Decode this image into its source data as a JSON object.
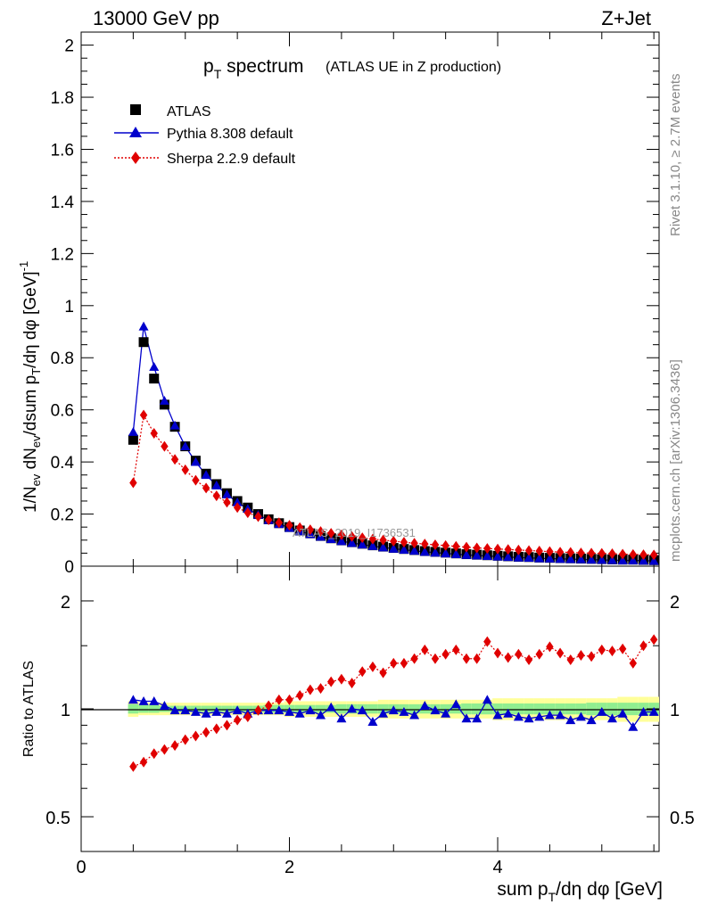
{
  "header": {
    "left": "13000 GeV pp",
    "right": "Z+Jet"
  },
  "plot_title": {
    "main": "p",
    "main_sub": "T",
    "main_rest": " spectrum",
    "qualifier": "(ATLAS UE in Z production)"
  },
  "side_labels": {
    "rivet": "Rivet 3.1.10, ≥ 2.7M events",
    "mcplots": "mcplots.cern.ch [arXiv:1306.3436]"
  },
  "watermark": "ATLAS_2019_I1736531",
  "y_axis_label": "1/N_ev dN_ev/dsum p_T/dη dφ [GeV]^-1",
  "x_axis_label": "sum p_T/dη dφ [GeV]",
  "ratio_axis_label": "Ratio to ATLAS",
  "colors": {
    "atlas": "#000000",
    "pythia": "#0000cc",
    "sherpa": "#e00000",
    "band_inner": "#90ee90",
    "band_outer": "#ffff99"
  },
  "legend": [
    {
      "label": "ATLAS",
      "marker": "square",
      "color": "#000000"
    },
    {
      "label": "Pythia 8.308 default",
      "marker": "triangle",
      "color": "#0000cc",
      "line": "solid"
    },
    {
      "label": "Sherpa 2.2.9 default",
      "marker": "diamond",
      "color": "#e00000",
      "line": "dotted"
    }
  ],
  "chart_data": [
    {
      "type": "line",
      "panel": "main",
      "x": [
        0.5,
        0.6,
        0.7,
        0.8,
        0.9,
        1.0,
        1.1,
        1.2,
        1.3,
        1.4,
        1.5,
        1.6,
        1.7,
        1.8,
        1.9,
        2.0,
        2.1,
        2.2,
        2.3,
        2.4,
        2.5,
        2.6,
        2.7,
        2.8,
        2.9,
        3.0,
        3.1,
        3.2,
        3.3,
        3.4,
        3.5,
        3.6,
        3.7,
        3.8,
        3.9,
        4.0,
        4.1,
        4.2,
        4.3,
        4.4,
        4.5,
        4.6,
        4.7,
        4.8,
        4.9,
        5.0,
        5.1,
        5.2,
        5.3,
        5.4,
        5.5
      ],
      "series": [
        {
          "name": "ATLAS",
          "values": [
            0.485,
            0.86,
            0.72,
            0.62,
            0.535,
            0.46,
            0.405,
            0.355,
            0.315,
            0.28,
            0.25,
            0.225,
            0.2,
            0.18,
            0.165,
            0.15,
            0.137,
            0.126,
            0.116,
            0.107,
            0.099,
            0.092,
            0.086,
            0.08,
            0.075,
            0.07,
            0.066,
            0.062,
            0.058,
            0.055,
            0.052,
            0.049,
            0.046,
            0.044,
            0.042,
            0.04,
            0.038,
            0.036,
            0.035,
            0.033,
            0.032,
            0.031,
            0.03,
            0.029,
            0.028,
            0.027,
            0.026,
            0.025,
            0.025,
            0.024,
            0.023
          ]
        },
        {
          "name": "Pythia 8.308 default",
          "values": [
            0.515,
            0.92,
            0.765,
            0.635,
            0.54,
            0.46,
            0.4,
            0.35,
            0.31,
            0.275,
            0.245,
            0.22,
            0.197,
            0.177,
            0.162,
            0.147,
            0.134,
            0.123,
            0.113,
            0.104,
            0.096,
            0.089,
            0.083,
            0.077,
            0.072,
            0.067,
            0.063,
            0.059,
            0.055,
            0.052,
            0.049,
            0.046,
            0.043,
            0.041,
            0.039,
            0.037,
            0.035,
            0.033,
            0.032,
            0.03,
            0.029,
            0.028,
            0.027,
            0.026,
            0.025,
            0.024,
            0.023,
            0.022,
            0.022,
            0.021,
            0.02
          ]
        },
        {
          "name": "Sherpa 2.2.9 default",
          "values": [
            0.32,
            0.58,
            0.51,
            0.46,
            0.41,
            0.37,
            0.33,
            0.3,
            0.27,
            0.245,
            0.225,
            0.205,
            0.19,
            0.178,
            0.167,
            0.157,
            0.148,
            0.14,
            0.133,
            0.126,
            0.12,
            0.114,
            0.109,
            0.104,
            0.1,
            0.096,
            0.092,
            0.088,
            0.085,
            0.082,
            0.079,
            0.076,
            0.073,
            0.07,
            0.068,
            0.066,
            0.064,
            0.062,
            0.06,
            0.058,
            0.056,
            0.054,
            0.053,
            0.051,
            0.05,
            0.049,
            0.048,
            0.046,
            0.045,
            0.044,
            0.043
          ]
        }
      ],
      "xlim": [
        0,
        5.55
      ],
      "ylim": [
        0,
        2.05
      ],
      "yticks": [
        "0",
        "0.2",
        "0.4",
        "0.6",
        "0.8",
        "1",
        "1.2",
        "1.4",
        "1.6",
        "1.8",
        "2"
      ],
      "legend_position": "top-left",
      "grid": false
    },
    {
      "type": "line",
      "panel": "ratio",
      "x": [
        0.5,
        0.6,
        0.7,
        0.8,
        0.9,
        1.0,
        1.1,
        1.2,
        1.3,
        1.4,
        1.5,
        1.6,
        1.7,
        1.8,
        1.9,
        2.0,
        2.1,
        2.2,
        2.3,
        2.4,
        2.5,
        2.6,
        2.7,
        2.8,
        2.9,
        3.0,
        3.1,
        3.2,
        3.3,
        3.4,
        3.5,
        3.6,
        3.7,
        3.8,
        3.9,
        4.0,
        4.1,
        4.2,
        4.3,
        4.4,
        4.5,
        4.6,
        4.7,
        4.8,
        4.9,
        5.0,
        5.1,
        5.2,
        5.3,
        5.4,
        5.5
      ],
      "series": [
        {
          "name": "Pythia 8.308 default",
          "values": [
            1.06,
            1.05,
            1.05,
            1.02,
            0.99,
            0.99,
            0.98,
            0.97,
            0.98,
            0.97,
            0.99,
            0.97,
            0.99,
            0.99,
            0.99,
            0.98,
            0.97,
            0.99,
            0.96,
            1.01,
            0.94,
            1.0,
            0.99,
            0.92,
            0.97,
            0.99,
            0.98,
            0.96,
            1.02,
            0.99,
            0.97,
            1.03,
            0.94,
            0.94,
            1.06,
            0.96,
            0.97,
            0.95,
            0.94,
            0.95,
            0.96,
            0.96,
            0.93,
            0.95,
            0.93,
            0.98,
            0.94,
            0.97,
            0.89,
            0.98,
            0.98
          ]
        },
        {
          "name": "Sherpa 2.2.9 default",
          "values": [
            0.69,
            0.71,
            0.75,
            0.77,
            0.79,
            0.82,
            0.84,
            0.86,
            0.88,
            0.9,
            0.93,
            0.95,
            0.99,
            1.02,
            1.06,
            1.06,
            1.09,
            1.13,
            1.14,
            1.19,
            1.21,
            1.18,
            1.27,
            1.31,
            1.26,
            1.34,
            1.34,
            1.38,
            1.46,
            1.38,
            1.42,
            1.46,
            1.38,
            1.38,
            1.54,
            1.43,
            1.39,
            1.42,
            1.37,
            1.42,
            1.49,
            1.43,
            1.37,
            1.41,
            1.4,
            1.46,
            1.45,
            1.47,
            1.34,
            1.5,
            1.56
          ]
        }
      ],
      "band_outer_halfwidth": [
        0.05,
        0.04,
        0.04,
        0.04,
        0.04,
        0.04,
        0.04,
        0.04,
        0.04,
        0.04,
        0.04,
        0.04,
        0.04,
        0.04,
        0.04,
        0.05,
        0.05,
        0.05,
        0.05,
        0.05,
        0.05,
        0.05,
        0.05,
        0.05,
        0.06,
        0.06,
        0.06,
        0.06,
        0.06,
        0.06,
        0.06,
        0.06,
        0.06,
        0.06,
        0.06,
        0.07,
        0.07,
        0.07,
        0.07,
        0.07,
        0.07,
        0.07,
        0.07,
        0.07,
        0.07,
        0.07,
        0.07,
        0.08,
        0.08,
        0.08,
        0.08
      ],
      "band_inner_halfwidth": [
        0.03,
        0.025,
        0.025,
        0.02,
        0.02,
        0.02,
        0.02,
        0.02,
        0.02,
        0.02,
        0.02,
        0.02,
        0.02,
        0.025,
        0.025,
        0.025,
        0.025,
        0.025,
        0.025,
        0.025,
        0.03,
        0.03,
        0.03,
        0.03,
        0.03,
        0.03,
        0.03,
        0.03,
        0.03,
        0.03,
        0.03,
        0.03,
        0.035,
        0.035,
        0.035,
        0.035,
        0.035,
        0.035,
        0.035,
        0.035,
        0.035,
        0.035,
        0.035,
        0.035,
        0.04,
        0.04,
        0.04,
        0.04,
        0.04,
        0.04,
        0.04
      ],
      "xlim": [
        0,
        5.55
      ],
      "ylim": [
        0.4,
        2.5
      ],
      "yscale": "log",
      "yticks": [
        "0.5",
        "1",
        "2"
      ],
      "xticks": [
        "0",
        "2",
        "4"
      ],
      "grid": false
    }
  ]
}
